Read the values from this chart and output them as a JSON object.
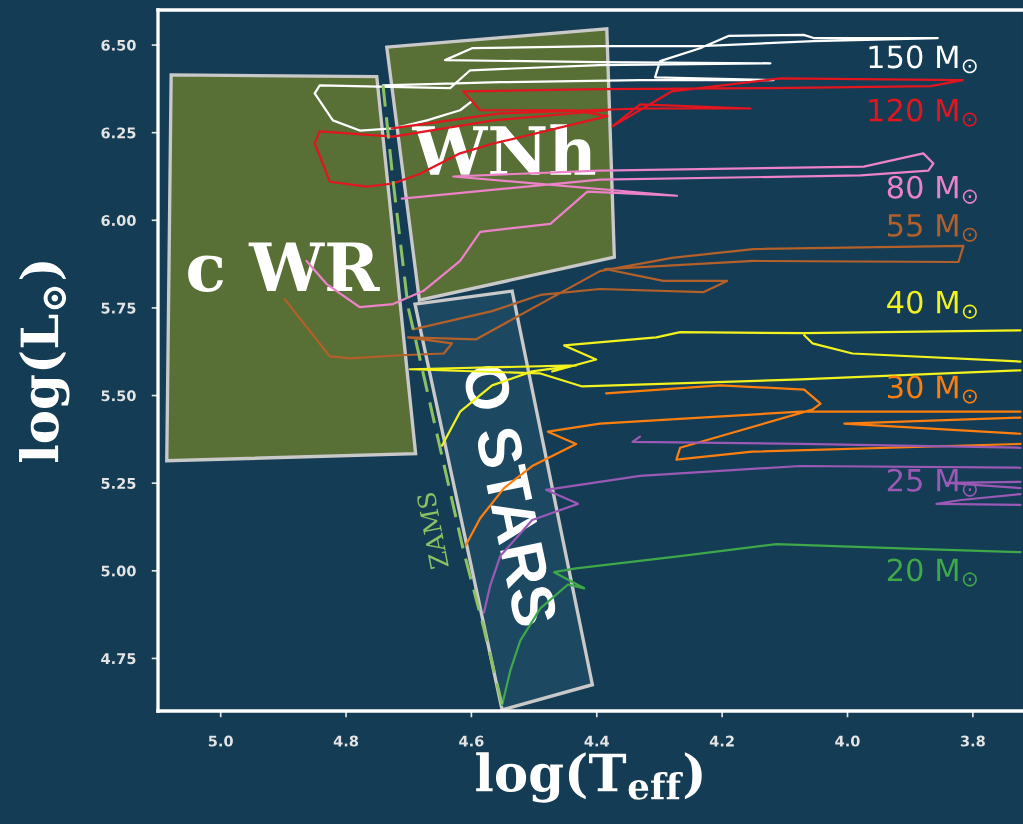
{
  "chart_data": {
    "type": "line",
    "xlabel": "log(T$_{eff}$)",
    "ylabel": "log(L$_{⊙}$)",
    "xlim": [
      5.1,
      3.72
    ],
    "ylim": [
      4.6,
      6.6
    ],
    "xticks": [
      {
        "value": 5.0,
        "label": "5.0"
      },
      4.8,
      4.6,
      4.4,
      4.2,
      {
        "value": 4.0,
        "label": "4.0"
      },
      3.8
    ],
    "yticks": [
      {
        "value": 6.5,
        "label": "6.50"
      },
      6.25,
      {
        "value": 6.0,
        "label": "6.00"
      },
      5.75,
      {
        "value": 5.5,
        "label": "5.50"
      },
      5.25,
      {
        "value": 5.0,
        "label": "5.00"
      },
      4.75
    ],
    "series": [
      {
        "name": "150 M$_{⊙}$",
        "color": "#ffffff",
        "x": [
          4.741,
          4.554,
          4.331,
          4.118,
          4.307,
          4.299,
          4.235,
          4.19,
          4.07,
          4.054,
          3.856,
          4.054,
          4.235,
          4.395,
          4.599,
          4.642,
          4.395,
          4.123,
          4.395,
          4.602,
          4.634,
          4.842,
          4.85,
          4.821,
          4.778,
          4.725,
          4.671,
          4.618,
          4.599
        ],
        "values": [
          6.385,
          6.394,
          6.4,
          6.4,
          6.408,
          6.454,
          6.491,
          6.526,
          6.529,
          6.52,
          6.52,
          6.511,
          6.497,
          6.497,
          6.491,
          6.457,
          6.451,
          6.448,
          6.443,
          6.428,
          6.377,
          6.385,
          6.362,
          6.285,
          6.256,
          6.262,
          6.285,
          6.314,
          6.34
        ]
      },
      {
        "name": "120 M$_{⊙}$",
        "color": "#e3151f",
        "x": [
          4.727,
          4.554,
          4.331,
          4.155,
          4.331,
          4.375,
          4.28,
          4.107,
          3.816,
          3.867,
          4.118,
          4.395,
          4.613,
          4.586,
          4.438,
          4.383,
          4.565,
          4.618,
          4.682,
          4.725,
          4.767,
          4.826,
          4.837,
          4.85,
          4.842,
          4.725,
          4.565,
          4.383
        ],
        "values": [
          6.262,
          6.305,
          6.319,
          6.319,
          6.331,
          6.268,
          6.368,
          6.405,
          6.4,
          6.383,
          6.377,
          6.374,
          6.368,
          6.314,
          6.314,
          6.297,
          6.219,
          6.191,
          6.133,
          6.105,
          6.096,
          6.11,
          6.162,
          6.219,
          6.254,
          6.239,
          6.285,
          6.314
        ]
      },
      {
        "name": "80 M$_{⊙}$",
        "color": "#ec82c8",
        "x": [
          4.711,
          4.395,
          3.979,
          3.871,
          3.863,
          3.879,
          3.974,
          4.395,
          4.629,
          4.272,
          4.415,
          4.474,
          4.586,
          4.618,
          4.677,
          4.725,
          4.778,
          4.831,
          4.863
        ],
        "values": [
          6.062,
          6.116,
          6.128,
          6.142,
          6.162,
          6.191,
          6.153,
          6.142,
          6.125,
          6.07,
          6.082,
          5.99,
          5.967,
          5.884,
          5.798,
          5.761,
          5.752,
          5.818,
          5.884
        ]
      },
      {
        "name": "55 M$_{⊙}$",
        "color": "#b4602a",
        "x": [
          4.693,
          4.567,
          4.49,
          4.395,
          4.23,
          4.192,
          4.294,
          4.387,
          4.15,
          3.823,
          3.815,
          4.15,
          4.28,
          4.395,
          4.593,
          4.701,
          4.631,
          4.644,
          4.714,
          4.794,
          4.826,
          4.898
        ],
        "values": [
          5.689,
          5.741,
          5.787,
          5.804,
          5.795,
          5.827,
          5.827,
          5.861,
          5.884,
          5.881,
          5.927,
          5.918,
          5.893,
          5.855,
          5.66,
          5.666,
          5.649,
          5.62,
          5.615,
          5.606,
          5.612,
          5.775
        ]
      },
      {
        "name": "40 M$_{⊙}$",
        "color": "#f2f21e",
        "x": [
          4.647,
          4.618,
          4.567,
          4.503,
          4.433,
          4.698,
          4.49,
          4.423,
          4.075,
          3.724,
          null,
          3.724,
          4.069,
          4.267,
          4.305,
          4.452,
          4.401,
          4.471,
          null,
          4.069,
          4.056,
          3.992,
          3.724
        ],
        "values": [
          5.357,
          5.454,
          5.529,
          5.569,
          5.586,
          5.575,
          5.563,
          5.526,
          5.546,
          5.572,
          null,
          5.686,
          5.678,
          5.681,
          5.666,
          5.643,
          5.603,
          5.569,
          null,
          5.672,
          5.649,
          5.62,
          5.597
        ]
      },
      {
        "name": "30 M$_{⊙}$",
        "color": "#ff7f0e",
        "x": [
          4.609,
          4.586,
          4.548,
          4.503,
          4.433,
          4.478,
          4.395,
          4.075,
          3.724,
          null,
          3.724,
          4.005,
          3.724,
          null,
          3.724,
          4.152,
          4.273,
          4.267,
          4.056,
          4.043,
          4.069,
          4.203,
          4.385
        ],
        "values": [
          5.073,
          5.15,
          5.236,
          5.299,
          5.362,
          5.397,
          5.42,
          5.454,
          5.454,
          null,
          5.437,
          5.42,
          5.391,
          null,
          5.362,
          5.34,
          5.317,
          5.351,
          5.46,
          5.477,
          5.517,
          5.529,
          5.506
        ]
      },
      {
        "name": "25 M$_{⊙}$",
        "color": "#9b59b6",
        "x": [
          4.58,
          4.57,
          4.554,
          4.503,
          4.43,
          4.481,
          4.331,
          4.075,
          3.724,
          null,
          3.724,
          4.075,
          4.343,
          4.331,
          null,
          3.724,
          3.842,
          3.724,
          null,
          3.724,
          3.819,
          3.858,
          3.724
        ],
        "values": [
          4.881,
          4.958,
          5.042,
          5.145,
          5.191,
          5.231,
          5.271,
          5.299,
          5.294,
          null,
          5.351,
          5.362,
          5.368,
          5.383,
          null,
          5.254,
          5.251,
          5.236,
          null,
          5.219,
          5.202,
          5.191,
          5.188
        ]
      },
      {
        "name": "20 M$_{⊙}$",
        "color": "#3ea84a",
        "x": [
          4.551,
          4.538,
          4.522,
          4.49,
          4.446,
          4.42,
          4.468,
          4.433,
          4.267,
          4.113,
          3.915,
          3.724
        ],
        "values": [
          4.617,
          4.715,
          4.801,
          4.893,
          4.961,
          4.95,
          4.996,
          5.007,
          5.042,
          5.076,
          5.064,
          5.053
        ]
      },
      {
        "name": "ZAMS",
        "line_style": "dashed",
        "color": "#8cc063",
        "x": [
          4.741,
          4.725,
          4.701,
          4.695,
          4.65,
          4.612,
          4.58,
          4.551
        ],
        "values": [
          6.385,
          6.113,
          5.752,
          5.706,
          5.351,
          5.053,
          4.835,
          4.617
        ]
      },
      {
        "name": "c WR",
        "type": "area",
        "color": "#586f35",
        "x": [
          5.079,
          4.751,
          4.689,
          5.086,
          5.079
        ],
        "values": [
          6.415,
          6.41,
          5.334,
          5.314,
          6.415
        ]
      },
      {
        "name": "WNh",
        "type": "area",
        "color": "#586f35",
        "x": [
          4.735,
          4.384,
          4.372,
          4.683,
          4.735
        ],
        "values": [
          6.494,
          6.546,
          5.895,
          5.772,
          6.494
        ]
      },
      {
        "name": "O STARS",
        "type": "area",
        "color": "#1c4862",
        "x": [
          4.69,
          4.535,
          4.407,
          4.551,
          4.69
        ],
        "values": [
          5.761,
          5.798,
          4.675,
          4.603,
          5.761
        ]
      }
    ]
  }
}
